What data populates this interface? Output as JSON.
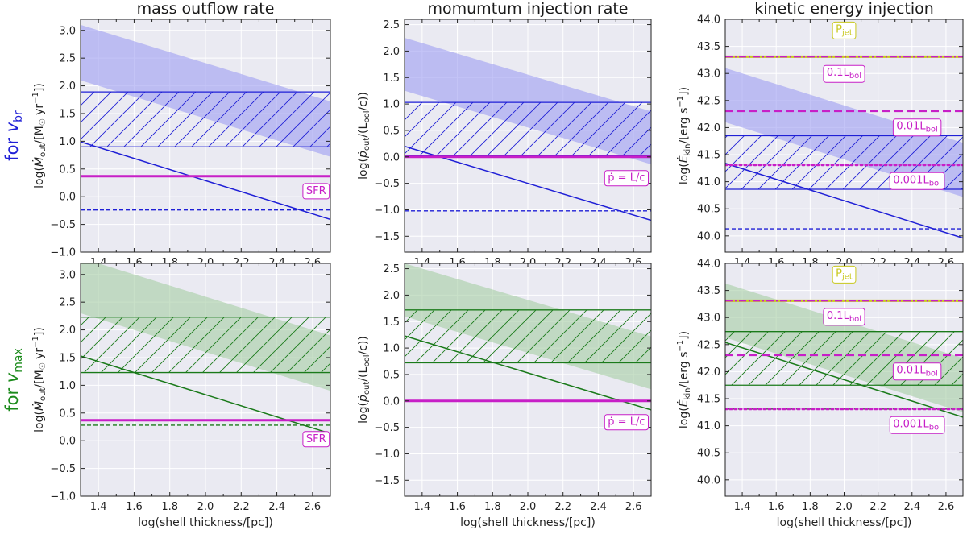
{
  "figure": {
    "row_labels": [
      {
        "text": "for ",
        "sym": "v",
        "sub": "br",
        "color": "#1f1fd6"
      },
      {
        "text": "for ",
        "sym": "v",
        "sub": "max",
        "color": "#1a8a1a"
      }
    ]
  },
  "chart_data": [
    {
      "id": "mass-top",
      "type": "line",
      "title": "mass outflow rate",
      "xlabel": "log(shell thickness/[pc])",
      "ylabel": {
        "prefix": "log(",
        "sym": "Ṁ",
        "sub": "out",
        "rest": "/[M",
        "sun": "☉",
        "tail": " yr",
        "sup": "−1",
        "end": "])"
      },
      "xlim": [
        1.3,
        2.7
      ],
      "ylim": [
        -1.0,
        3.2
      ],
      "xticks": [
        1.4,
        1.6,
        1.8,
        2.0,
        2.2,
        2.4,
        2.6
      ],
      "xticklabels": [
        "1.4",
        "1.6",
        "1.8",
        "2.0",
        "2.2",
        "2.4",
        "2.6"
      ],
      "yticks": [
        -1.0,
        -0.5,
        0.0,
        0.5,
        1.0,
        1.5,
        2.0,
        2.5,
        3.0
      ],
      "yticklabels": [
        "−1.0",
        "−0.5",
        "0.0",
        "0.5",
        "1.0",
        "1.5",
        "2.0",
        "2.5",
        "3.0"
      ],
      "color": "#1f1fd6",
      "fill": "#9f9ff2",
      "shaded_band": {
        "upper": [
          [
            1.3,
            3.1
          ],
          [
            2.7,
            1.72
          ]
        ],
        "lower": [
          [
            1.3,
            2.1
          ],
          [
            2.7,
            0.72
          ]
        ]
      },
      "hatched_band": {
        "y_lower": 0.9,
        "y_upper": 1.89
      },
      "solid_line": [
        [
          1.3,
          0.99
        ],
        [
          2.7,
          -0.41
        ]
      ],
      "dashed_line": -0.24,
      "references": [
        {
          "name": "SFR",
          "value": 0.37,
          "style": "solid",
          "color": "#c71fc7",
          "width": 3
        }
      ],
      "annotations": [
        {
          "text": "SFR",
          "x": 2.62,
          "y": 0.12,
          "color": "#c71fc7",
          "edge": "#c71fc7"
        }
      ]
    },
    {
      "id": "mom-top",
      "type": "line",
      "title": "momumtum injection rate",
      "xlabel": "log(shell thickness/[pc])",
      "ylabel": {
        "prefix": "log(",
        "sym": "ṗ",
        "sub": "out",
        "rest": "/(L",
        "sub2": "bol",
        "tail": "/c))"
      },
      "xlim": [
        1.3,
        2.7
      ],
      "ylim": [
        -1.8,
        2.6
      ],
      "xticks": [
        1.4,
        1.6,
        1.8,
        2.0,
        2.2,
        2.4,
        2.6
      ],
      "xticklabels": [
        "1.4",
        "1.6",
        "1.8",
        "2.0",
        "2.2",
        "2.4",
        "2.6"
      ],
      "yticks": [
        -1.5,
        -1.0,
        -0.5,
        0.0,
        0.5,
        1.0,
        1.5,
        2.0,
        2.5
      ],
      "yticklabels": [
        "−1.5",
        "−1.0",
        "−0.5",
        "0.0",
        "0.5",
        "1.0",
        "1.5",
        "2.0",
        "2.5"
      ],
      "color": "#1f1fd6",
      "fill": "#9f9ff2",
      "shaded_band": {
        "upper": [
          [
            1.3,
            2.25
          ],
          [
            2.7,
            0.86
          ]
        ],
        "lower": [
          [
            1.3,
            1.25
          ],
          [
            2.7,
            -0.14
          ]
        ]
      },
      "hatched_band": {
        "y_lower": 0.03,
        "y_upper": 1.03
      },
      "solid_line": [
        [
          1.3,
          0.2
        ],
        [
          2.7,
          -1.2
        ]
      ],
      "dashed_line": -1.02,
      "references": [
        {
          "name": "p = L/c",
          "value": 0.0,
          "style": "solid",
          "color": "#c71fc7",
          "width": 3
        }
      ],
      "annotations": [
        {
          "text": "ṗ = L/c",
          "x": 2.56,
          "y": -0.38,
          "color": "#c71fc7",
          "edge": "#c71fc7"
        }
      ]
    },
    {
      "id": "kin-top",
      "type": "line",
      "title": "kinetic energy injection",
      "xlabel": "log(shell thickness/[pc])",
      "ylabel": {
        "prefix": "log(",
        "sym": "Ė",
        "sub": "kin",
        "rest": "/[erg s",
        "sup": "−1",
        "end": "])"
      },
      "xlim": [
        1.3,
        2.7
      ],
      "ylim": [
        39.7,
        44.0
      ],
      "xticks": [
        1.4,
        1.6,
        1.8,
        2.0,
        2.2,
        2.4,
        2.6
      ],
      "xticklabels": [
        "1.4",
        "1.6",
        "1.8",
        "2.0",
        "2.2",
        "2.4",
        "2.6"
      ],
      "yticks": [
        40.0,
        40.5,
        41.0,
        41.5,
        42.0,
        42.5,
        43.0,
        43.5,
        44.0
      ],
      "yticklabels": [
        "40.0",
        "40.5",
        "41.0",
        "41.5",
        "42.0",
        "42.5",
        "43.0",
        "43.5",
        "44.0"
      ],
      "color": "#1f1fd6",
      "fill": "#9f9ff2",
      "shaded_band": {
        "upper": [
          [
            1.3,
            43.1
          ],
          [
            2.7,
            41.72
          ]
        ],
        "lower": [
          [
            1.3,
            42.1
          ],
          [
            2.7,
            40.72
          ]
        ]
      },
      "hatched_band": {
        "y_lower": 40.86,
        "y_upper": 41.85
      },
      "solid_line": [
        [
          1.3,
          41.34
        ],
        [
          2.7,
          39.96
        ]
      ],
      "dashed_line": 40.13,
      "references": [
        {
          "name": "P_jet",
          "value": 43.31,
          "style": "jet",
          "color": "#c8c81e",
          "width": 3
        },
        {
          "name": "0.1L_bol",
          "value": 43.31,
          "style": "dashdot",
          "color": "#c71fc7",
          "width": 2
        },
        {
          "name": "0.01L_bol",
          "value": 42.31,
          "style": "dashed",
          "color": "#c71fc7",
          "width": 3
        },
        {
          "name": "0.001L_bol",
          "value": 41.31,
          "style": "dotted",
          "color": "#c71fc7",
          "width": 3
        }
      ],
      "annotations": [
        {
          "text": "P",
          "sub": "jet",
          "x": 2.0,
          "y": 43.83,
          "color": "#c8c81e",
          "edge": "#c8c81e"
        },
        {
          "text": "0.1L",
          "sub": "bol",
          "x": 2.0,
          "y": 43.03,
          "color": "#c71fc7",
          "edge": "#c71fc7"
        },
        {
          "text": "0.01L",
          "sub": "bol",
          "x": 2.43,
          "y": 42.04,
          "color": "#c71fc7",
          "edge": "#c71fc7"
        },
        {
          "text": "0.001L",
          "sub": "bol",
          "x": 2.43,
          "y": 41.05,
          "color": "#c71fc7",
          "edge": "#c71fc7"
        }
      ]
    },
    {
      "id": "mass-bot",
      "type": "line",
      "title": "",
      "xlabel": "log(shell thickness/[pc])",
      "ylabel": {
        "prefix": "log(",
        "sym": "Ṁ",
        "sub": "out",
        "rest": "/[M",
        "sun": "☉",
        "tail": " yr",
        "sup": "−1",
        "end": "])"
      },
      "xlim": [
        1.3,
        2.7
      ],
      "ylim": [
        -1.0,
        3.2
      ],
      "xticks": [
        1.4,
        1.6,
        1.8,
        2.0,
        2.2,
        2.4,
        2.6
      ],
      "xticklabels": [
        "1.4",
        "1.6",
        "1.8",
        "2.0",
        "2.2",
        "2.4",
        "2.6"
      ],
      "yticks": [
        -1.0,
        -0.5,
        0.0,
        0.5,
        1.0,
        1.5,
        2.0,
        2.5,
        3.0
      ],
      "yticklabels": [
        "−1.0",
        "−0.5",
        "0.0",
        "0.5",
        "1.0",
        "1.5",
        "2.0",
        "2.5",
        "3.0"
      ],
      "color": "#1a7a1a",
      "fill": "#a8cfa6",
      "shaded_band": {
        "upper": [
          [
            1.3,
            3.3
          ],
          [
            2.7,
            1.9
          ]
        ],
        "lower": [
          [
            1.3,
            2.3
          ],
          [
            2.7,
            0.9
          ]
        ]
      },
      "hatched_band": {
        "y_lower": 1.23,
        "y_upper": 2.23
      },
      "solid_line": [
        [
          1.3,
          1.53
        ],
        [
          2.7,
          0.13
        ]
      ],
      "dashed_line": 0.28,
      "references": [
        {
          "name": "SFR",
          "value": 0.37,
          "style": "solid",
          "color": "#c71fc7",
          "width": 3
        }
      ],
      "annotations": [
        {
          "text": "SFR",
          "x": 2.62,
          "y": 0.05,
          "color": "#c71fc7",
          "edge": "#c71fc7"
        }
      ]
    },
    {
      "id": "mom-bot",
      "type": "line",
      "title": "",
      "xlabel": "log(shell thickness/[pc])",
      "ylabel": {
        "prefix": "log(",
        "sym": "ṗ",
        "sub": "out",
        "rest": "/(L",
        "sub2": "bol",
        "tail": "/c))"
      },
      "xlim": [
        1.3,
        2.7
      ],
      "ylim": [
        -1.8,
        2.6
      ],
      "xticks": [
        1.4,
        1.6,
        1.8,
        2.0,
        2.2,
        2.4,
        2.6
      ],
      "xticklabels": [
        "1.4",
        "1.6",
        "1.8",
        "2.0",
        "2.2",
        "2.4",
        "2.6"
      ],
      "yticks": [
        -1.5,
        -1.0,
        -0.5,
        0.0,
        0.5,
        1.0,
        1.5,
        2.0,
        2.5
      ],
      "yticklabels": [
        "−1.5",
        "−1.0",
        "−0.5",
        "0.0",
        "0.5",
        "1.0",
        "1.5",
        "2.0",
        "2.5"
      ],
      "color": "#1a7a1a",
      "fill": "#a8cfa6",
      "shaded_band": {
        "upper": [
          [
            1.3,
            2.6
          ],
          [
            2.7,
            1.22
          ]
        ],
        "lower": [
          [
            1.3,
            1.6
          ],
          [
            2.7,
            0.22
          ]
        ]
      },
      "hatched_band": {
        "y_lower": 0.72,
        "y_upper": 1.72
      },
      "solid_line": [
        [
          1.3,
          1.23
        ],
        [
          2.7,
          -0.17
        ]
      ],
      "dashed_line": null,
      "references": [
        {
          "name": "p = L/c",
          "value": 0.0,
          "style": "solid",
          "color": "#c71fc7",
          "width": 3
        }
      ],
      "annotations": [
        {
          "text": "ṗ = L/c",
          "x": 2.56,
          "y": -0.38,
          "color": "#c71fc7",
          "edge": "#c71fc7"
        }
      ]
    },
    {
      "id": "kin-bot",
      "type": "line",
      "title": "",
      "xlabel": "log(shell thickness/[pc])",
      "ylabel": {
        "prefix": "log(",
        "sym": "Ė",
        "sub": "kin",
        "rest": "/[erg s",
        "sup": "−1",
        "end": "])"
      },
      "xlim": [
        1.3,
        2.7
      ],
      "ylim": [
        39.7,
        44.0
      ],
      "xticks": [
        1.4,
        1.6,
        1.8,
        2.0,
        2.2,
        2.4,
        2.6
      ],
      "xticklabels": [
        "1.4",
        "1.6",
        "1.8",
        "2.0",
        "2.2",
        "2.4",
        "2.6"
      ],
      "yticks": [
        40.0,
        40.5,
        41.0,
        41.5,
        42.0,
        42.5,
        43.0,
        43.5,
        44.0
      ],
      "yticklabels": [
        "40.0",
        "40.5",
        "41.0",
        "41.5",
        "42.0",
        "42.5",
        "43.0",
        "43.5",
        "44.0"
      ],
      "color": "#1a7a1a",
      "fill": "#a8cfa6",
      "shaded_band": {
        "upper": [
          [
            1.3,
            43.63
          ],
          [
            2.7,
            42.25
          ]
        ],
        "lower": [
          [
            1.3,
            42.63
          ],
          [
            2.7,
            41.25
          ]
        ]
      },
      "hatched_band": {
        "y_lower": 41.75,
        "y_upper": 42.74
      },
      "solid_line": [
        [
          1.3,
          42.54
        ],
        [
          2.7,
          41.16
        ]
      ],
      "dashed_line": 41.31,
      "references": [
        {
          "name": "P_jet",
          "value": 43.31,
          "style": "jet",
          "color": "#c8c81e",
          "width": 3
        },
        {
          "name": "0.1L_bol",
          "value": 43.31,
          "style": "dashdot",
          "color": "#c71fc7",
          "width": 2
        },
        {
          "name": "0.01L_bol",
          "value": 42.31,
          "style": "dashed",
          "color": "#c71fc7",
          "width": 3
        },
        {
          "name": "0.001L_bol",
          "value": 41.31,
          "style": "dotted",
          "color": "#c71fc7",
          "width": 3
        }
      ],
      "annotations": [
        {
          "text": "P",
          "sub": "jet",
          "x": 2.0,
          "y": 43.83,
          "color": "#c8c81e",
          "edge": "#c8c81e"
        },
        {
          "text": "0.1L",
          "sub": "bol",
          "x": 2.0,
          "y": 43.05,
          "color": "#c71fc7",
          "edge": "#c71fc7"
        },
        {
          "text": "0.01L",
          "sub": "bol",
          "x": 2.43,
          "y": 42.04,
          "color": "#c71fc7",
          "edge": "#c71fc7"
        },
        {
          "text": "0.001L",
          "sub": "bol",
          "x": 2.43,
          "y": 41.05,
          "color": "#c71fc7",
          "edge": "#c71fc7"
        }
      ]
    }
  ]
}
